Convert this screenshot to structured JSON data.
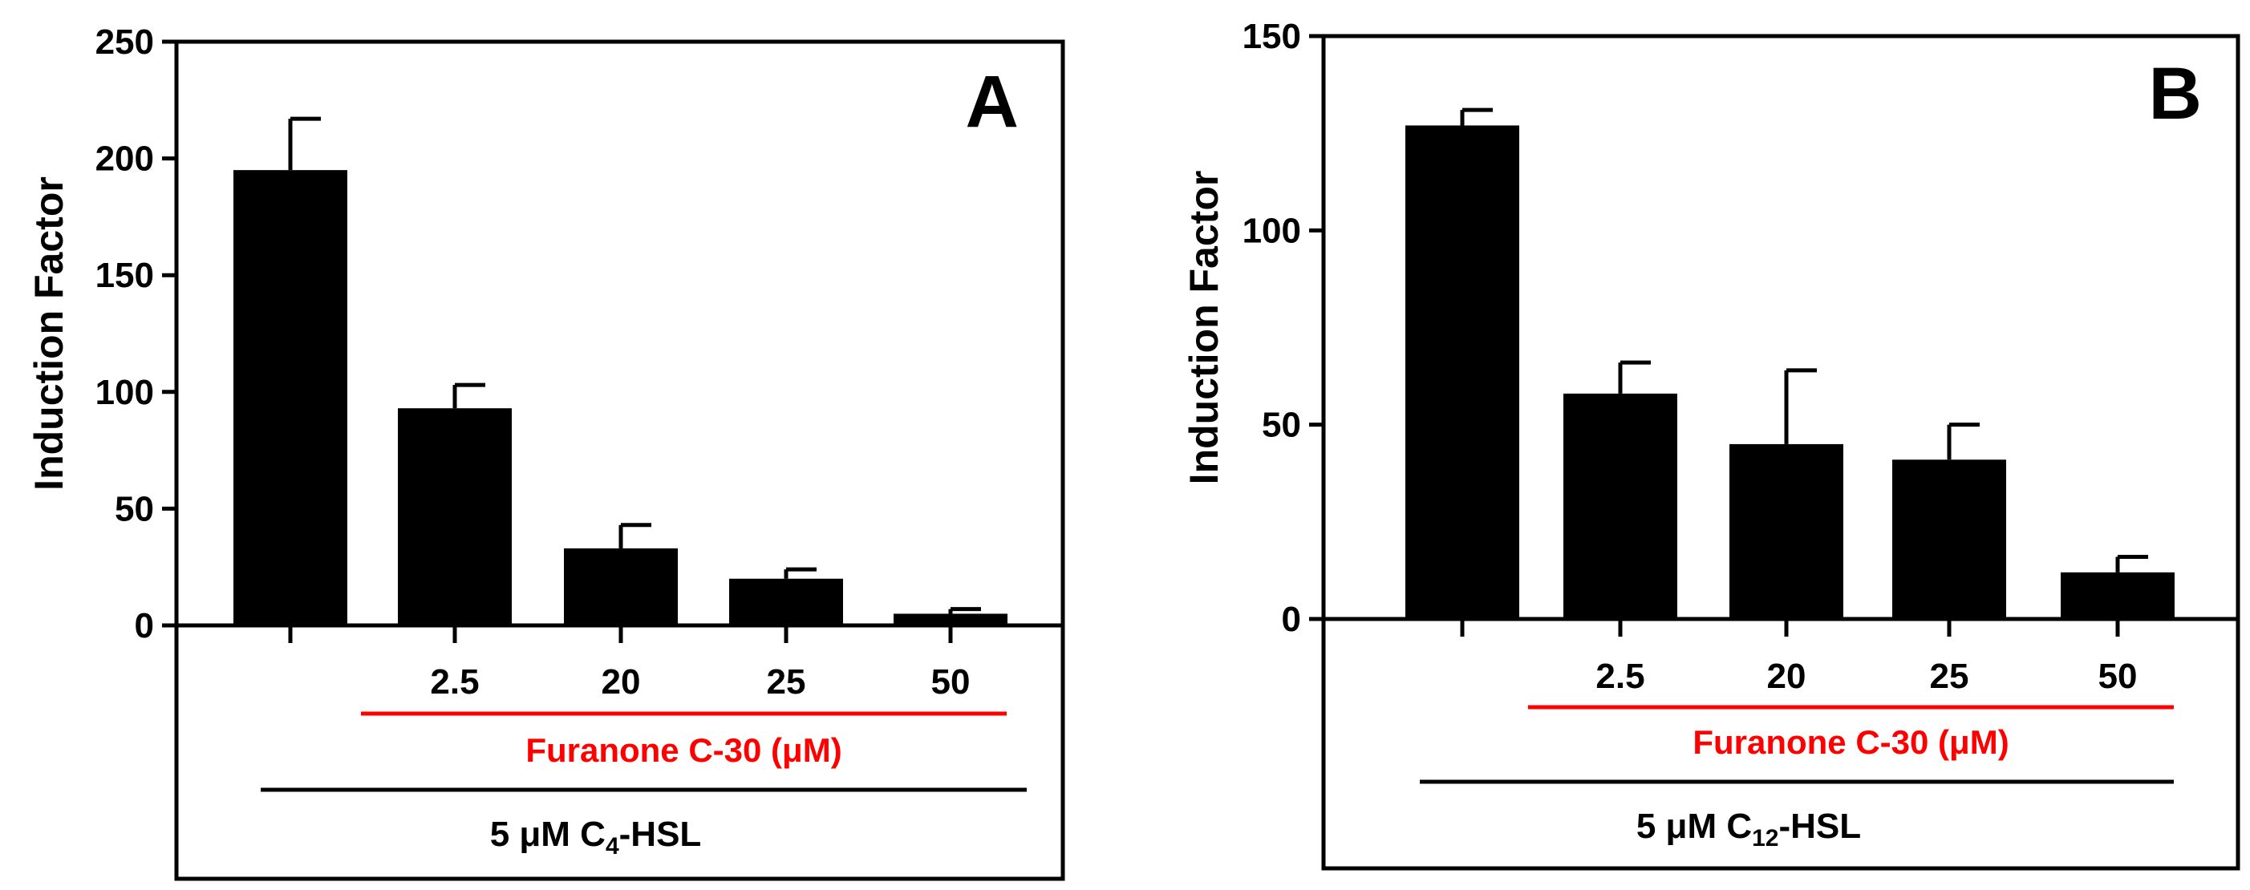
{
  "colors": {
    "bar": "#000000",
    "frame": "#000000",
    "red_line": "#ff0000",
    "text_red": "#ff0000"
  },
  "chart_data": [
    {
      "type": "bar",
      "panel_label": "A",
      "ylabel": "Induction Factor",
      "ylim": [
        0,
        250
      ],
      "yticks": [
        "0",
        "50",
        "100",
        "150",
        "200",
        "250"
      ],
      "categories": [
        "",
        "2.5",
        "20",
        "25",
        "50"
      ],
      "values": [
        195,
        93,
        33,
        20,
        5
      ],
      "errors": [
        22,
        10,
        10,
        4,
        2
      ],
      "red_line_label": "Furanone C-30 (μM)",
      "black_line_label_prefix": "5 μM C",
      "black_line_label_sub": "4",
      "black_line_label_suffix": "-HSL"
    },
    {
      "type": "bar",
      "panel_label": "B",
      "ylabel": "Induction Factor",
      "ylim": [
        0,
        150
      ],
      "yticks": [
        "0",
        "50",
        "100",
        "150"
      ],
      "categories": [
        "",
        "2.5",
        "20",
        "25",
        "50"
      ],
      "values": [
        127,
        58,
        45,
        41,
        12
      ],
      "errors": [
        4,
        8,
        19,
        9,
        4
      ],
      "red_line_label": "Furanone C-30 (μM)",
      "black_line_label_prefix": "5 μM C",
      "black_line_label_sub": "12",
      "black_line_label_suffix": "-HSL"
    }
  ]
}
